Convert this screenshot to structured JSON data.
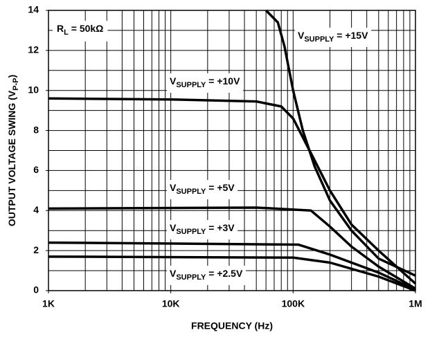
{
  "chart_data": {
    "type": "line",
    "xlabel": "FREQUENCY (Hz)",
    "ylabel": {
      "main": "OUTPUT VOLTAGE SWING (V",
      "sub": "P-P",
      "suffix": ")"
    },
    "xscale": "log",
    "xlim": [
      1000,
      1000000
    ],
    "ylim": [
      0,
      14
    ],
    "xticks": [
      {
        "value": 1000,
        "label": "1K"
      },
      {
        "value": 10000,
        "label": "10K"
      },
      {
        "value": 100000,
        "label": "100K"
      },
      {
        "value": 1000000,
        "label": "1M"
      }
    ],
    "yticks": [
      0,
      2,
      4,
      6,
      8,
      10,
      12,
      14
    ],
    "xgrid": [
      1000,
      2000,
      3000,
      4000,
      5000,
      6000,
      7000,
      8000,
      9000,
      10000,
      20000,
      30000,
      40000,
      50000,
      60000,
      70000,
      80000,
      90000,
      100000,
      200000,
      300000,
      400000,
      500000,
      600000,
      700000,
      800000,
      900000,
      1000000
    ],
    "ygrid": [
      0,
      1,
      2,
      3,
      4,
      5,
      6,
      7,
      8,
      9,
      10,
      11,
      12,
      13,
      14
    ],
    "grid": true,
    "color": "#000000",
    "series": [
      {
        "label": {
          "main": "V",
          "sub": "SUPPLY",
          "suffix": " = +15V"
        },
        "x": [
          60000,
          75000,
          85000,
          100000,
          120000,
          150000,
          200000,
          300000,
          500000,
          1000000
        ],
        "values": [
          14,
          13.4,
          12.2,
          10,
          8,
          6.2,
          4.5,
          3,
          1.6,
          0.75
        ]
      },
      {
        "label": {
          "main": "V",
          "sub": "SUPPLY",
          "suffix": " = +10V"
        },
        "x": [
          1000,
          10000,
          50000,
          80000,
          100000,
          150000,
          200000,
          300000,
          500000,
          1000000
        ],
        "values": [
          9.6,
          9.55,
          9.45,
          9.2,
          8.6,
          6.5,
          5,
          3.3,
          2,
          0.35
        ]
      },
      {
        "label": {
          "main": "V",
          "sub": "SUPPLY",
          "suffix": " = +5V"
        },
        "x": [
          1000,
          50000,
          140000,
          200000,
          300000,
          500000,
          1000000
        ],
        "values": [
          4.1,
          4.15,
          4,
          3.2,
          2.2,
          1.2,
          0.1
        ]
      },
      {
        "label": {
          "main": "V",
          "sub": "SUPPLY",
          "suffix": " = +3V"
        },
        "x": [
          1000,
          110000,
          200000,
          500000,
          1000000
        ],
        "values": [
          2.4,
          2.3,
          1.8,
          0.9,
          0.05
        ]
      },
      {
        "label": {
          "main": "V",
          "sub": "SUPPLY",
          "suffix": " = +2.5V"
        },
        "x": [
          1000,
          100000,
          200000,
          500000,
          1000000
        ],
        "values": [
          1.7,
          1.65,
          1.4,
          0.7,
          0
        ]
      }
    ],
    "annotation": {
      "main": "R",
      "sub": "L",
      "suffix": " = 50kΩ"
    }
  }
}
